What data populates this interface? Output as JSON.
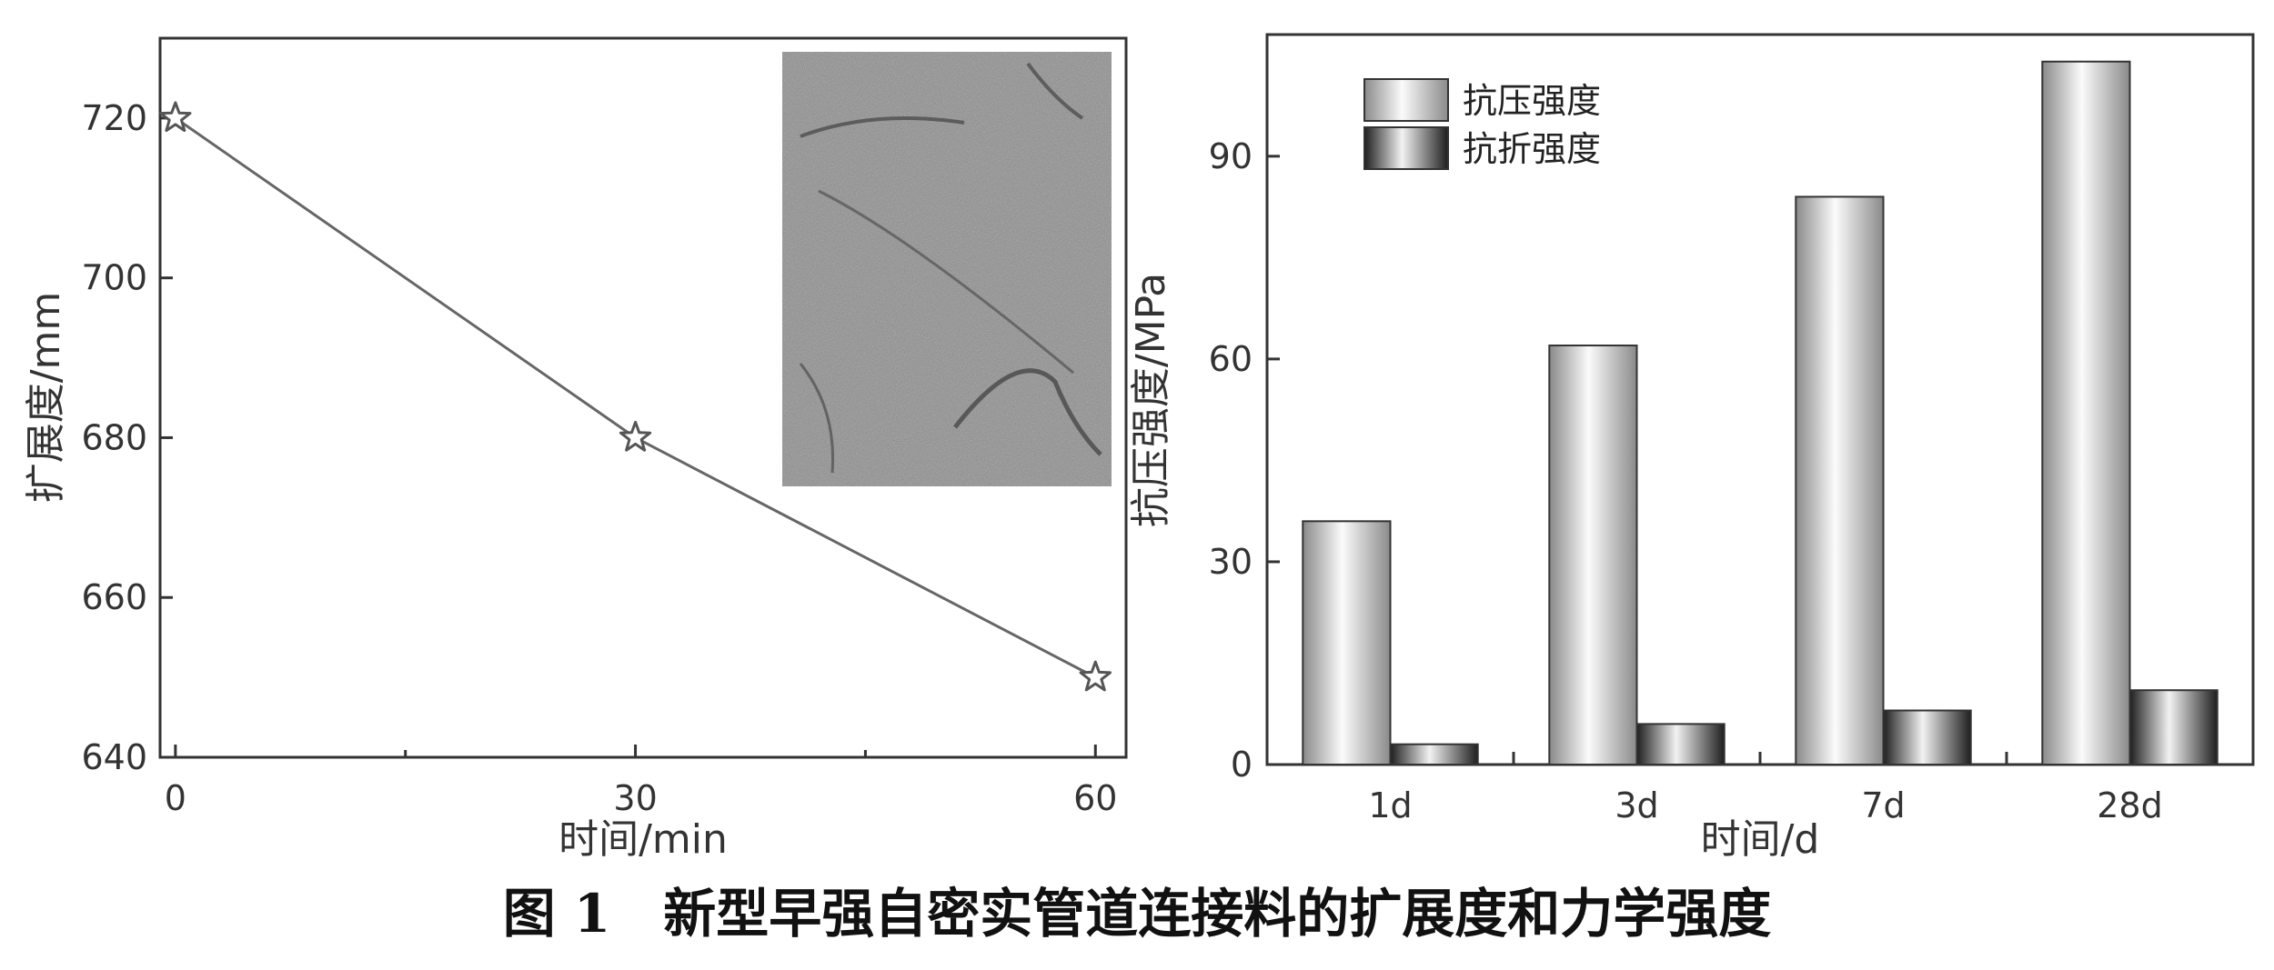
{
  "chart_data": [
    {
      "type": "line",
      "xlabel": "时间/min",
      "ylabel": "扩展度/mm",
      "x": [
        0,
        30,
        60
      ],
      "series": [
        {
          "values": [
            720,
            680,
            650
          ],
          "marker": "star"
        }
      ],
      "xlim": [
        -1,
        62
      ],
      "ylim": [
        640,
        730
      ],
      "xticks": [
        "0",
        "30",
        "60"
      ],
      "yticks": [
        "640",
        "660",
        "680",
        "700",
        "720"
      ],
      "inset": "photo-texture-grayscale",
      "colors": {
        "line": "#666666",
        "marker_stroke": "#555555",
        "axis": "#333333"
      }
    },
    {
      "type": "bar",
      "xlabel": "时间/d",
      "ylabel": "抗压强度/MPa",
      "categories": [
        "1d",
        "3d",
        "7d",
        "28d"
      ],
      "series": [
        {
          "name": "抗压强度",
          "values": [
            36,
            62,
            84,
            104
          ]
        },
        {
          "name": "抗折强度",
          "values": [
            3,
            6,
            8,
            11
          ]
        }
      ],
      "ylim": [
        0,
        108
      ],
      "yticks": [
        "0",
        "30",
        "60",
        "90"
      ],
      "legend": "top-left",
      "colors": {
        "compressive": "#bdbdbd",
        "flexural": "#444444",
        "axis": "#333333"
      }
    }
  ],
  "caption": "图 1　新型早强自密实管道连接料的扩展度和力学强度"
}
